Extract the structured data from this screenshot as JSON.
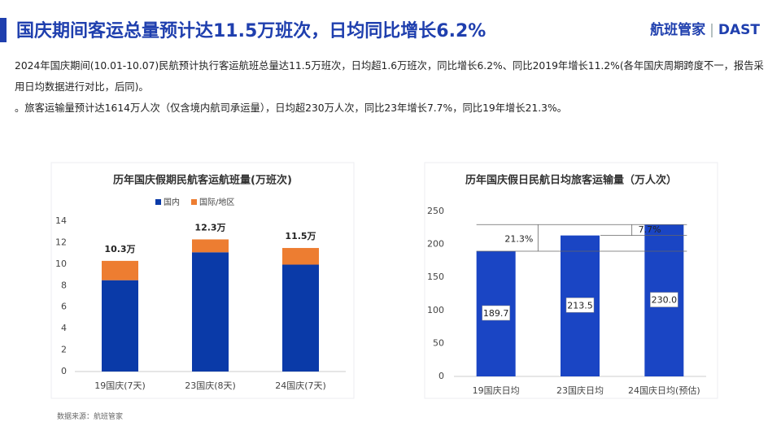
{
  "header": {
    "title": "国庆期间客运总量预计达11.5万班次，日均同比增长6.2%",
    "logo": "航班管家",
    "brand": "DAST"
  },
  "paragraphs": [
    "2024年国庆期间(10.01-10.07)民航预计执行客运航班总量达11.5万班次，日均超1.6万班次，同比增长6.2%、同比2019年增长11.2%(各年国庆周期跨度不一，报告采用日均数据进行对比，后同)。",
    "。旅客运输量预计达1614万人次（仅含境内航司承运量），日均超230万人次，同比23年增长7.7%，同比19年增长21.3%。"
  ],
  "source": "数据来源：航班管家",
  "chart_data": [
    {
      "type": "stacked_bar",
      "title": "历年国庆假期民航客运航班量(万班次)",
      "categories": [
        "19国庆(7天)",
        "23国庆(8天)",
        "24国庆(7天)"
      ],
      "series": [
        {
          "name": "国内",
          "color": "#0a3aa8",
          "values": [
            8.5,
            11.1,
            9.95
          ]
        },
        {
          "name": "国际/地区",
          "color": "#ed7d31",
          "values": [
            1.8,
            1.2,
            1.55
          ]
        }
      ],
      "annotations": [
        "10.3万",
        "12.3万",
        "11.5万"
      ],
      "ylim": [
        0,
        14
      ],
      "yticks": [
        0,
        2,
        4,
        6,
        8,
        10,
        12,
        14
      ]
    },
    {
      "type": "bar",
      "title": "历年国庆假日民航日均旅客运输量（万人次）",
      "categories": [
        "19国庆日均",
        "23国庆日均",
        "24国庆日均(预估)"
      ],
      "values": [
        189.7,
        213.5,
        230
      ],
      "value_labels": [
        "189.7",
        "213.5",
        "230.0"
      ],
      "color": "#1a45c4",
      "annotations": [
        "21.3%",
        "7.7%"
      ],
      "ylim": [
        0,
        250
      ],
      "yticks": [
        0,
        50,
        100,
        150,
        200,
        250
      ]
    }
  ]
}
